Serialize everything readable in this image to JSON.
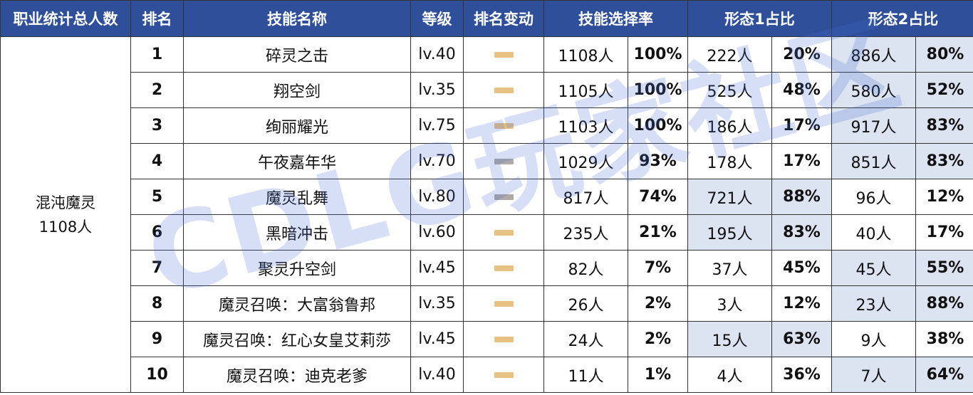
{
  "headers": {
    "class_total": "职业统计总人数",
    "rank": "排名",
    "skill_name": "技能名称",
    "level": "等级",
    "rank_change": "排名变动",
    "selection_rate": "技能选择率",
    "form1_ratio": "形态1占比",
    "form2_ratio": "形态2占比"
  },
  "class_info": {
    "name": "混沌魔灵",
    "total": "1108人"
  },
  "rows": [
    {
      "rank": "1",
      "skill": "碎灵之击",
      "level": "lv.40",
      "change": "same",
      "sel_count": "1108人",
      "sel_pct": "100%",
      "f1_count": "222人",
      "f1_pct": "20%",
      "f2_count": "886人",
      "f2_pct": "80%"
    },
    {
      "rank": "2",
      "skill": "翔空剑",
      "level": "lv.35",
      "change": "same",
      "sel_count": "1105人",
      "sel_pct": "100%",
      "f1_count": "525人",
      "f1_pct": "48%",
      "f2_count": "580人",
      "f2_pct": "52%"
    },
    {
      "rank": "3",
      "skill": "绚丽耀光",
      "level": "lv.75",
      "change": "same",
      "sel_count": "1103人",
      "sel_pct": "100%",
      "f1_count": "186人",
      "f1_pct": "17%",
      "f2_count": "917人",
      "f2_pct": "83%"
    },
    {
      "rank": "4",
      "skill": "午夜嘉年华",
      "level": "lv.70",
      "change": "gray",
      "sel_count": "1029人",
      "sel_pct": "93%",
      "f1_count": "178人",
      "f1_pct": "17%",
      "f2_count": "851人",
      "f2_pct": "83%"
    },
    {
      "rank": "5",
      "skill": "魔灵乱舞",
      "level": "lv.80",
      "change": "gray",
      "sel_count": "817人",
      "sel_pct": "74%",
      "f1_count": "721人",
      "f1_pct": "88%",
      "f2_count": "96人",
      "f2_pct": "12%"
    },
    {
      "rank": "6",
      "skill": "黑暗冲击",
      "level": "lv.60",
      "change": "same",
      "sel_count": "235人",
      "sel_pct": "21%",
      "f1_count": "195人",
      "f1_pct": "83%",
      "f2_count": "40人",
      "f2_pct": "17%"
    },
    {
      "rank": "7",
      "skill": "聚灵升空剑",
      "level": "lv.45",
      "change": "same",
      "sel_count": "82人",
      "sel_pct": "7%",
      "f1_count": "37人",
      "f1_pct": "45%",
      "f2_count": "45人",
      "f2_pct": "55%"
    },
    {
      "rank": "8",
      "skill": "魔灵召唤：大富翁鲁邦",
      "level": "lv.35",
      "change": "same",
      "sel_count": "26人",
      "sel_pct": "2%",
      "f1_count": "3人",
      "f1_pct": "12%",
      "f2_count": "23人",
      "f2_pct": "88%"
    },
    {
      "rank": "9",
      "skill": "魔灵召唤：红心女皇艾莉莎",
      "level": "lv.45",
      "change": "same",
      "sel_count": "24人",
      "sel_pct": "2%",
      "f1_count": "15人",
      "f1_pct": "63%",
      "f2_count": "9人",
      "f2_pct": "38%"
    },
    {
      "rank": "10",
      "skill": "魔灵召唤：迪克老爹",
      "level": "lv.40",
      "change": "same",
      "sel_count": "11人",
      "sel_pct": "1%",
      "f1_count": "4人",
      "f1_pct": "36%",
      "f2_count": "7人",
      "f2_pct": "64%"
    }
  ],
  "highlight": {
    "form1": [
      false,
      false,
      false,
      false,
      true,
      true,
      false,
      false,
      true,
      false
    ],
    "form2": [
      true,
      true,
      true,
      true,
      false,
      false,
      true,
      true,
      false,
      true
    ]
  },
  "colors": {
    "header_bg": "#2f4f9a",
    "highlight_bg": "#dce3f1",
    "bar_same": "#e7c184",
    "bar_gray": "#b0aaa6"
  },
  "watermark": "CDLG玩家社区"
}
